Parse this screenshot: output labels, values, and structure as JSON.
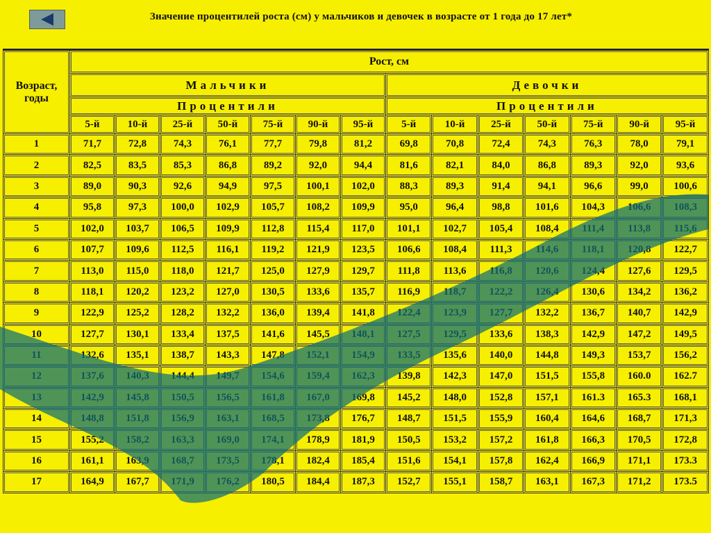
{
  "header": {
    "title": "Значение процентилей роста (см) у мальчиков и девочек в возрасте от 1 года до 17 лет*"
  },
  "table": {
    "age_header": "Возраст, годы",
    "height_header": "Рост, см",
    "boys": "Мальчики",
    "girls": "Девочки",
    "percentiles_boys": "Процентили",
    "percentiles_girls": "Процентили",
    "columns": [
      "5-й",
      "10-й",
      "25-й",
      "50-й",
      "75-й",
      "90-й",
      "95-й",
      "5-й",
      "10-й",
      "25-й",
      "50-й",
      "75-й",
      "90-й",
      "95-й"
    ],
    "rows": [
      [
        "1",
        "71,7",
        "72,8",
        "74,3",
        "76,1",
        "77,7",
        "79,8",
        "81,2",
        "69,8",
        "70,8",
        "72,4",
        "74,3",
        "76,3",
        "78,0",
        "79,1"
      ],
      [
        "2",
        "82,5",
        "83,5",
        "85,3",
        "86,8",
        "89,2",
        "92,0",
        "94,4",
        "81,6",
        "82,1",
        "84,0",
        "86,8",
        "89,3",
        "92,0",
        "93,6"
      ],
      [
        "3",
        "89,0",
        "90,3",
        "92,6",
        "94,9",
        "97,5",
        "100,1",
        "102,0",
        "88,3",
        "89,3",
        "91,4",
        "94,1",
        "96,6",
        "99,0",
        "100,6"
      ],
      [
        "4",
        "95,8",
        "97,3",
        "100,0",
        "102,9",
        "105,7",
        "108,2",
        "109,9",
        "95,0",
        "96,4",
        "98,8",
        "101,6",
        "104,3",
        "106,6",
        "108,3"
      ],
      [
        "5",
        "102,0",
        "103,7",
        "106,5",
        "109,9",
        "112,8",
        "115,4",
        "117,0",
        "101,1",
        "102,7",
        "105,4",
        "108,4",
        "111,4",
        "113,8",
        "115,6"
      ],
      [
        "6",
        "107,7",
        "109,6",
        "112,5",
        "116,1",
        "119,2",
        "121,9",
        "123,5",
        "106,6",
        "108,4",
        "111,3",
        "114,6",
        "118,1",
        "120,8",
        "122,7"
      ],
      [
        "7",
        "113,0",
        "115,0",
        "118,0",
        "121,7",
        "125,0",
        "127,9",
        "129,7",
        "111,8",
        "113,6",
        "116,8",
        "120,6",
        "124,4",
        "127,6",
        "129,5"
      ],
      [
        "8",
        "118,1",
        "120,2",
        "123,2",
        "127,0",
        "130,5",
        "133,6",
        "135,7",
        "116,9",
        "118,7",
        "122,2",
        "126,4",
        "130,6",
        "134,2",
        "136,2"
      ],
      [
        "9",
        "122,9",
        "125,2",
        "128,2",
        "132,2",
        "136,0",
        "139,4",
        "141,8",
        "122,4",
        "123,9",
        "127,7",
        "132,2",
        "136,7",
        "140,7",
        "142,9"
      ],
      [
        "10",
        "127,7",
        "130,1",
        "133,4",
        "137,5",
        "141,6",
        "145,5",
        "148,1",
        "127,5",
        "129,5",
        "133,6",
        "138,3",
        "142,9",
        "147,2",
        "149,5"
      ],
      [
        "11",
        "132,6",
        "135,1",
        "138,7",
        "143,3",
        "147,8",
        "152,1",
        "154,9",
        "133,5",
        "135,6",
        "140,0",
        "144,8",
        "149,3",
        "153,7",
        "156,2"
      ],
      [
        "12",
        "137,6",
        "140,3",
        "144,4",
        "149,7",
        "154,6",
        "159,4",
        "162,3",
        "139,8",
        "142,3",
        "147,0",
        "151,5",
        "155,8",
        "160.0",
        "162.7"
      ],
      [
        "13",
        "142,9",
        "145,8",
        "150,5",
        "156,5",
        "161,8",
        "167,0",
        "169,8",
        "145,2",
        "148,0",
        "152,8",
        "157,1",
        "161.3",
        "165.3",
        "168,1"
      ],
      [
        "14",
        "148,8",
        "151,8",
        "156,9",
        "163,1",
        "168,5",
        "173,8",
        "176,7",
        "148,7",
        "151,5",
        "155,9",
        "160,4",
        "164,6",
        "168,7",
        "171,3"
      ],
      [
        "15",
        "155,2",
        "158,2",
        "163,3",
        "169,0",
        "174,1",
        "178,9",
        "181,9",
        "150,5",
        "153,2",
        "157,2",
        "161,8",
        "166,3",
        "170,5",
        "172,8"
      ],
      [
        "16",
        "161,1",
        "163,9",
        "168,7",
        "173,5",
        "178,1",
        "182,4",
        "185,4",
        "151,6",
        "154,1",
        "157,8",
        "162,4",
        "166,9",
        "171,1",
        "173.3"
      ],
      [
        "17",
        "164,9",
        "167,7",
        "171,9",
        "176,2",
        "180,5",
        "184,4",
        "187,3",
        "152,7",
        "155,1",
        "158,7",
        "163,1",
        "167,3",
        "171,2",
        "173.5"
      ]
    ]
  }
}
